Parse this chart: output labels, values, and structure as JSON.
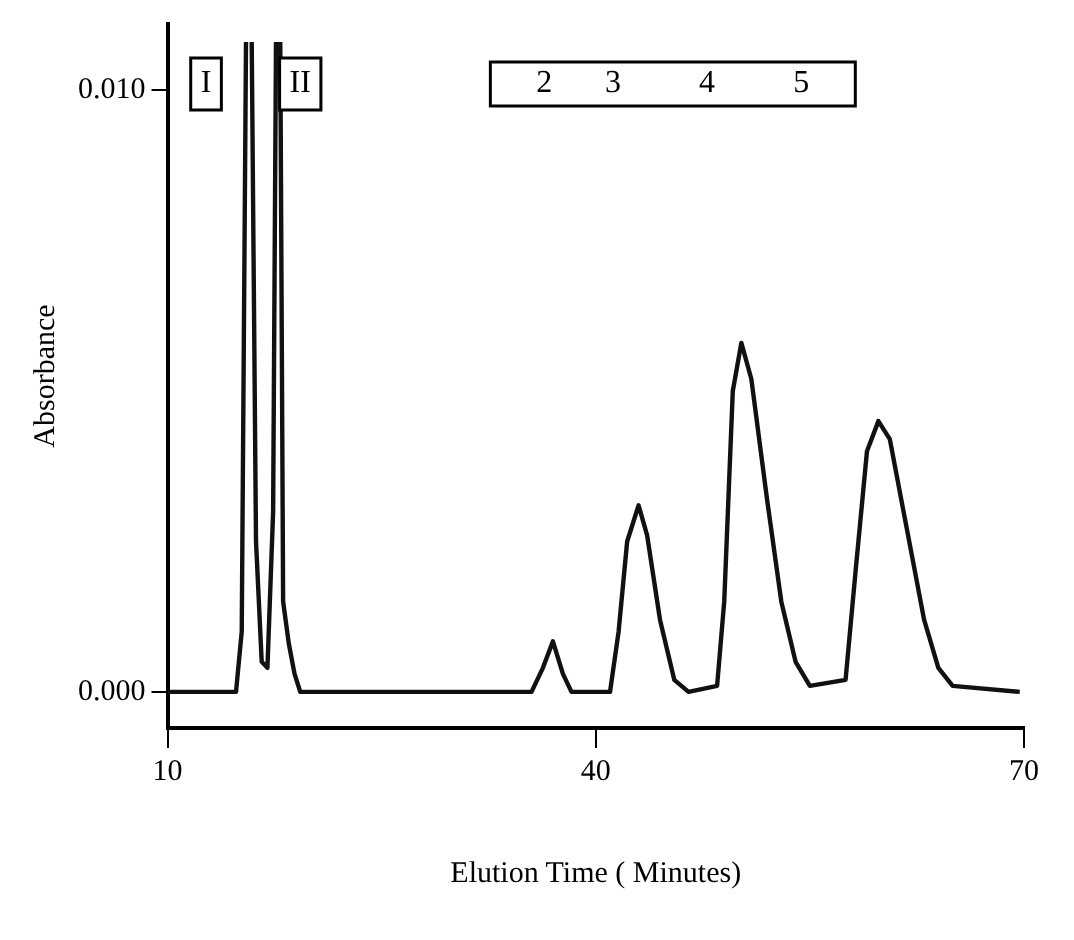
{
  "chart_data": {
    "type": "line",
    "xlabel": "Elution Time ( Minutes)",
    "ylabel": "Absorbance",
    "xlim": [
      10,
      70
    ],
    "xticks": [
      10,
      40,
      70
    ],
    "ylim": [
      -0.0006,
      0.0111
    ],
    "yticks": [
      {
        "value": 0,
        "label": "0.000"
      },
      {
        "value": 0.01,
        "label": "0.010"
      }
    ],
    "grid": false,
    "legend": false,
    "marker": "none",
    "line_style": "solid",
    "annotations": [
      "I",
      "II",
      "2",
      "3",
      "4",
      "5"
    ],
    "series": [
      {
        "color": "#111111",
        "x": [
          10,
          14.8,
          15.2,
          15.5,
          15.7,
          15.9,
          16.2,
          16.6,
          17.0,
          17.4,
          17.6,
          17.75,
          17.9,
          18.1,
          18.5,
          18.9,
          19.3,
          35.5,
          36.3,
          37.0,
          37.7,
          38.3,
          41.0,
          41.6,
          42.2,
          43.0,
          43.6,
          44.5,
          45.5,
          46.5,
          48.5,
          49.0,
          49.6,
          50.2,
          50.9,
          52.0,
          53.0,
          54.0,
          55.0,
          57.5,
          58.2,
          59.0,
          59.8,
          60.6,
          61.8,
          63.0,
          64.0,
          65.0,
          69.7
        ],
        "values": [
          0,
          0,
          0.001,
          0.0108,
          null,
          0.0108,
          0.0025,
          0.0005,
          0.0004,
          0.003,
          0.0108,
          null,
          0.0108,
          0.0015,
          0.0008,
          0.0003,
          0,
          0,
          0.0004,
          0.00084,
          0.0003,
          0,
          0,
          0.001,
          0.0025,
          0.0031,
          0.0026,
          0.0012,
          0.0002,
          0,
          0.0001,
          0.0015,
          0.005,
          0.0058,
          0.0052,
          0.0032,
          0.0015,
          0.0005,
          0.0001,
          0.0002,
          0.002,
          0.004,
          0.0045,
          0.0042,
          0.0027,
          0.0012,
          0.0004,
          0.0001,
          0
        ]
      }
    ]
  }
}
